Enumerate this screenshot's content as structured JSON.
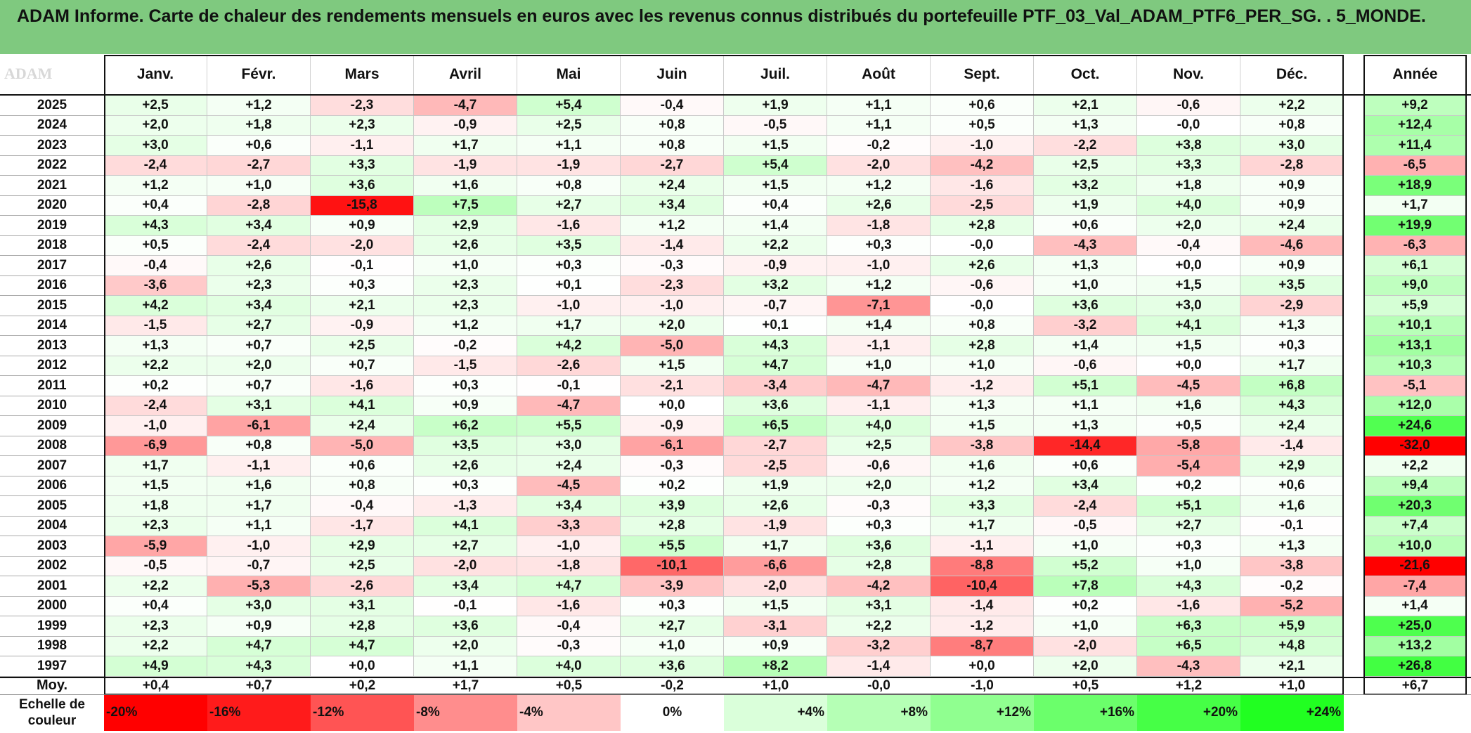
{
  "title": "ADAM Informe. Carte de chaleur des rendements mensuels en euros avec les revenus connus distribués du portefeuille PTF_03_Val_ADAM_PTF6_PER_SG. . 5_MONDE.",
  "watermark": "ADAM",
  "colors": {
    "header_bg": "#7fc97f",
    "positive": "#00ff00",
    "negative": "#ff0000",
    "neutral": "#ffffff"
  },
  "chart_data": {
    "type": "heatmap",
    "title": "ADAM Informe. Carte de chaleur des rendements mensuels en euros avec les revenus connus distribués du portefeuille PTF_03_Val_ADAM_PTF6_PER_SG. . 5_MONDE.",
    "columns": [
      "Janv.",
      "Févr.",
      "Mars",
      "Avril",
      "Mai",
      "Juin",
      "Juil.",
      "Août",
      "Sept.",
      "Oct.",
      "Nov.",
      "Déc."
    ],
    "annual_header": "Année",
    "rows": [
      {
        "year": "2025",
        "months": [
          "+2,5",
          "+1,2",
          "-2,3",
          "-4,7",
          "+5,4",
          "-0,4",
          "+1,9",
          "+1,1",
          "+0,6",
          "+2,1",
          "-0,6",
          "+2,2"
        ],
        "annual": "+9,2"
      },
      {
        "year": "2024",
        "months": [
          "+2,0",
          "+1,8",
          "+2,3",
          "-0,9",
          "+2,5",
          "+0,8",
          "-0,5",
          "+1,1",
          "+0,5",
          "+1,3",
          "-0,0",
          "+0,8"
        ],
        "annual": "+12,4"
      },
      {
        "year": "2023",
        "months": [
          "+3,0",
          "+0,6",
          "-1,1",
          "+1,7",
          "+1,1",
          "+0,8",
          "+1,5",
          "-0,2",
          "-1,0",
          "-2,2",
          "+3,8",
          "+3,0"
        ],
        "annual": "+11,4"
      },
      {
        "year": "2022",
        "months": [
          "-2,4",
          "-2,7",
          "+3,3",
          "-1,9",
          "-1,9",
          "-2,7",
          "+5,4",
          "-2,0",
          "-4,2",
          "+2,5",
          "+3,3",
          "-2,8"
        ],
        "annual": "-6,5"
      },
      {
        "year": "2021",
        "months": [
          "+1,2",
          "+1,0",
          "+3,6",
          "+1,6",
          "+0,8",
          "+2,4",
          "+1,5",
          "+1,2",
          "-1,6",
          "+3,2",
          "+1,8",
          "+0,9"
        ],
        "annual": "+18,9"
      },
      {
        "year": "2020",
        "months": [
          "+0,4",
          "-2,8",
          "-15,8",
          "+7,5",
          "+2,7",
          "+3,4",
          "+0,4",
          "+2,6",
          "-2,5",
          "+1,9",
          "+4,0",
          "+0,9"
        ],
        "annual": "+1,7"
      },
      {
        "year": "2019",
        "months": [
          "+4,3",
          "+3,4",
          "+0,9",
          "+2,9",
          "-1,6",
          "+1,2",
          "+1,4",
          "-1,8",
          "+2,8",
          "+0,6",
          "+2,0",
          "+2,4"
        ],
        "annual": "+19,9"
      },
      {
        "year": "2018",
        "months": [
          "+0,5",
          "-2,4",
          "-2,0",
          "+2,6",
          "+3,5",
          "-1,4",
          "+2,2",
          "+0,3",
          "-0,0",
          "-4,3",
          "-0,4",
          "-4,6"
        ],
        "annual": "-6,3"
      },
      {
        "year": "2017",
        "months": [
          "-0,4",
          "+2,6",
          "-0,1",
          "+1,0",
          "+0,3",
          "-0,3",
          "-0,9",
          "-1,0",
          "+2,6",
          "+1,3",
          "+0,0",
          "+0,9"
        ],
        "annual": "+6,1"
      },
      {
        "year": "2016",
        "months": [
          "-3,6",
          "+2,3",
          "+0,3",
          "+2,3",
          "+0,1",
          "-2,3",
          "+3,2",
          "+1,2",
          "-0,6",
          "+1,0",
          "+1,5",
          "+3,5"
        ],
        "annual": "+9,0"
      },
      {
        "year": "2015",
        "months": [
          "+4,2",
          "+3,4",
          "+2,1",
          "+2,3",
          "-1,0",
          "-1,0",
          "-0,7",
          "-7,1",
          "-0,0",
          "+3,6",
          "+3,0",
          "-2,9"
        ],
        "annual": "+5,9"
      },
      {
        "year": "2014",
        "months": [
          "-1,5",
          "+2,7",
          "-0,9",
          "+1,2",
          "+1,7",
          "+2,0",
          "+0,1",
          "+1,4",
          "+0,8",
          "-3,2",
          "+4,1",
          "+1,3"
        ],
        "annual": "+10,1"
      },
      {
        "year": "2013",
        "months": [
          "+1,3",
          "+0,7",
          "+2,5",
          "-0,2",
          "+4,2",
          "-5,0",
          "+4,3",
          "-1,1",
          "+2,8",
          "+1,4",
          "+1,5",
          "+0,3"
        ],
        "annual": "+13,1"
      },
      {
        "year": "2012",
        "months": [
          "+2,2",
          "+2,0",
          "+0,7",
          "-1,5",
          "-2,6",
          "+1,5",
          "+4,7",
          "+1,0",
          "+1,0",
          "-0,6",
          "+0,0",
          "+1,7"
        ],
        "annual": "+10,3"
      },
      {
        "year": "2011",
        "months": [
          "+0,2",
          "+0,7",
          "-1,6",
          "+0,3",
          "-0,1",
          "-2,1",
          "-3,4",
          "-4,7",
          "-1,2",
          "+5,1",
          "-4,5",
          "+6,8"
        ],
        "annual": "-5,1"
      },
      {
        "year": "2010",
        "months": [
          "-2,4",
          "+3,1",
          "+4,1",
          "+0,9",
          "-4,7",
          "+0,0",
          "+3,6",
          "-1,1",
          "+1,3",
          "+1,1",
          "+1,6",
          "+4,3"
        ],
        "annual": "+12,0"
      },
      {
        "year": "2009",
        "months": [
          "-1,0",
          "-6,1",
          "+2,4",
          "+6,2",
          "+5,5",
          "-0,9",
          "+6,5",
          "+4,0",
          "+1,5",
          "+1,3",
          "+0,5",
          "+2,4"
        ],
        "annual": "+24,6"
      },
      {
        "year": "2008",
        "months": [
          "-6,9",
          "+0,8",
          "-5,0",
          "+3,5",
          "+3,0",
          "-6,1",
          "-2,7",
          "+2,5",
          "-3,8",
          "-14,4",
          "-5,8",
          "-1,4"
        ],
        "annual": "-32,0"
      },
      {
        "year": "2007",
        "months": [
          "+1,7",
          "-1,1",
          "+0,6",
          "+2,6",
          "+2,4",
          "-0,3",
          "-2,5",
          "-0,6",
          "+1,6",
          "+0,6",
          "-5,4",
          "+2,9"
        ],
        "annual": "+2,2"
      },
      {
        "year": "2006",
        "months": [
          "+1,5",
          "+1,6",
          "+0,8",
          "+0,3",
          "-4,5",
          "+0,2",
          "+1,9",
          "+2,0",
          "+1,2",
          "+3,4",
          "+0,2",
          "+0,6"
        ],
        "annual": "+9,4"
      },
      {
        "year": "2005",
        "months": [
          "+1,8",
          "+1,7",
          "-0,4",
          "-1,3",
          "+3,4",
          "+3,9",
          "+2,6",
          "-0,3",
          "+3,3",
          "-2,4",
          "+5,1",
          "+1,6"
        ],
        "annual": "+20,3"
      },
      {
        "year": "2004",
        "months": [
          "+2,3",
          "+1,1",
          "-1,7",
          "+4,1",
          "-3,3",
          "+2,8",
          "-1,9",
          "+0,3",
          "+1,7",
          "-0,5",
          "+2,7",
          "-0,1"
        ],
        "annual": "+7,4"
      },
      {
        "year": "2003",
        "months": [
          "-5,9",
          "-1,0",
          "+2,9",
          "+2,7",
          "-1,0",
          "+5,5",
          "+1,7",
          "+3,6",
          "-1,1",
          "+1,0",
          "+0,3",
          "+1,3"
        ],
        "annual": "+10,0"
      },
      {
        "year": "2002",
        "months": [
          "-0,5",
          "-0,7",
          "+2,5",
          "-2,0",
          "-1,8",
          "-10,1",
          "-6,6",
          "+2,8",
          "-8,8",
          "+5,2",
          "+1,0",
          "-3,8"
        ],
        "annual": "-21,6"
      },
      {
        "year": "2001",
        "months": [
          "+2,2",
          "-5,3",
          "-2,6",
          "+3,4",
          "+4,7",
          "-3,9",
          "-2,0",
          "-4,2",
          "-10,4",
          "+7,8",
          "+4,3",
          "-0,2"
        ],
        "annual": "-7,4"
      },
      {
        "year": "2000",
        "months": [
          "+0,4",
          "+3,0",
          "+3,1",
          "-0,1",
          "-1,6",
          "+0,3",
          "+1,5",
          "+3,1",
          "-1,4",
          "+0,2",
          "-1,6",
          "-5,2"
        ],
        "annual": "+1,4"
      },
      {
        "year": "1999",
        "months": [
          "+2,3",
          "+0,9",
          "+2,8",
          "+3,6",
          "-0,4",
          "+2,7",
          "-3,1",
          "+2,2",
          "-1,2",
          "+1,0",
          "+6,3",
          "+5,9"
        ],
        "annual": "+25,0"
      },
      {
        "year": "1998",
        "months": [
          "+2,2",
          "+4,7",
          "+4,7",
          "+2,0",
          "-0,3",
          "+1,0",
          "+0,9",
          "-3,2",
          "-8,7",
          "-2,0",
          "+6,5",
          "+4,8"
        ],
        "annual": "+13,2"
      },
      {
        "year": "1997",
        "months": [
          "+4,9",
          "+4,3",
          "+0,0",
          "+1,1",
          "+4,0",
          "+3,6",
          "+8,2",
          "-1,4",
          "+0,0",
          "+2,0",
          "-4,3",
          "+2,1"
        ],
        "annual": "+26,8"
      }
    ],
    "average": {
      "label": "Moy.",
      "months": [
        "+0,4",
        "+0,7",
        "+0,2",
        "+1,7",
        "+0,5",
        "-0,2",
        "+1,0",
        "-0,0",
        "-1,0",
        "+0,5",
        "+1,2",
        "+1,0"
      ],
      "annual": "+6,7"
    },
    "scale": {
      "label_line1": "Echelle de",
      "label_line2": "couleur",
      "labels": [
        "-20%",
        "-16%",
        "-12%",
        "-8%",
        "-4%",
        "0%",
        "+4%",
        "+8%",
        "+12%",
        "+16%",
        "+20%",
        "+24%"
      ],
      "values": [
        -20,
        -16,
        -12,
        -8,
        -4,
        0,
        4,
        8,
        12,
        16,
        20,
        24
      ]
    },
    "color_range": {
      "min": -20,
      "max": 28
    }
  }
}
